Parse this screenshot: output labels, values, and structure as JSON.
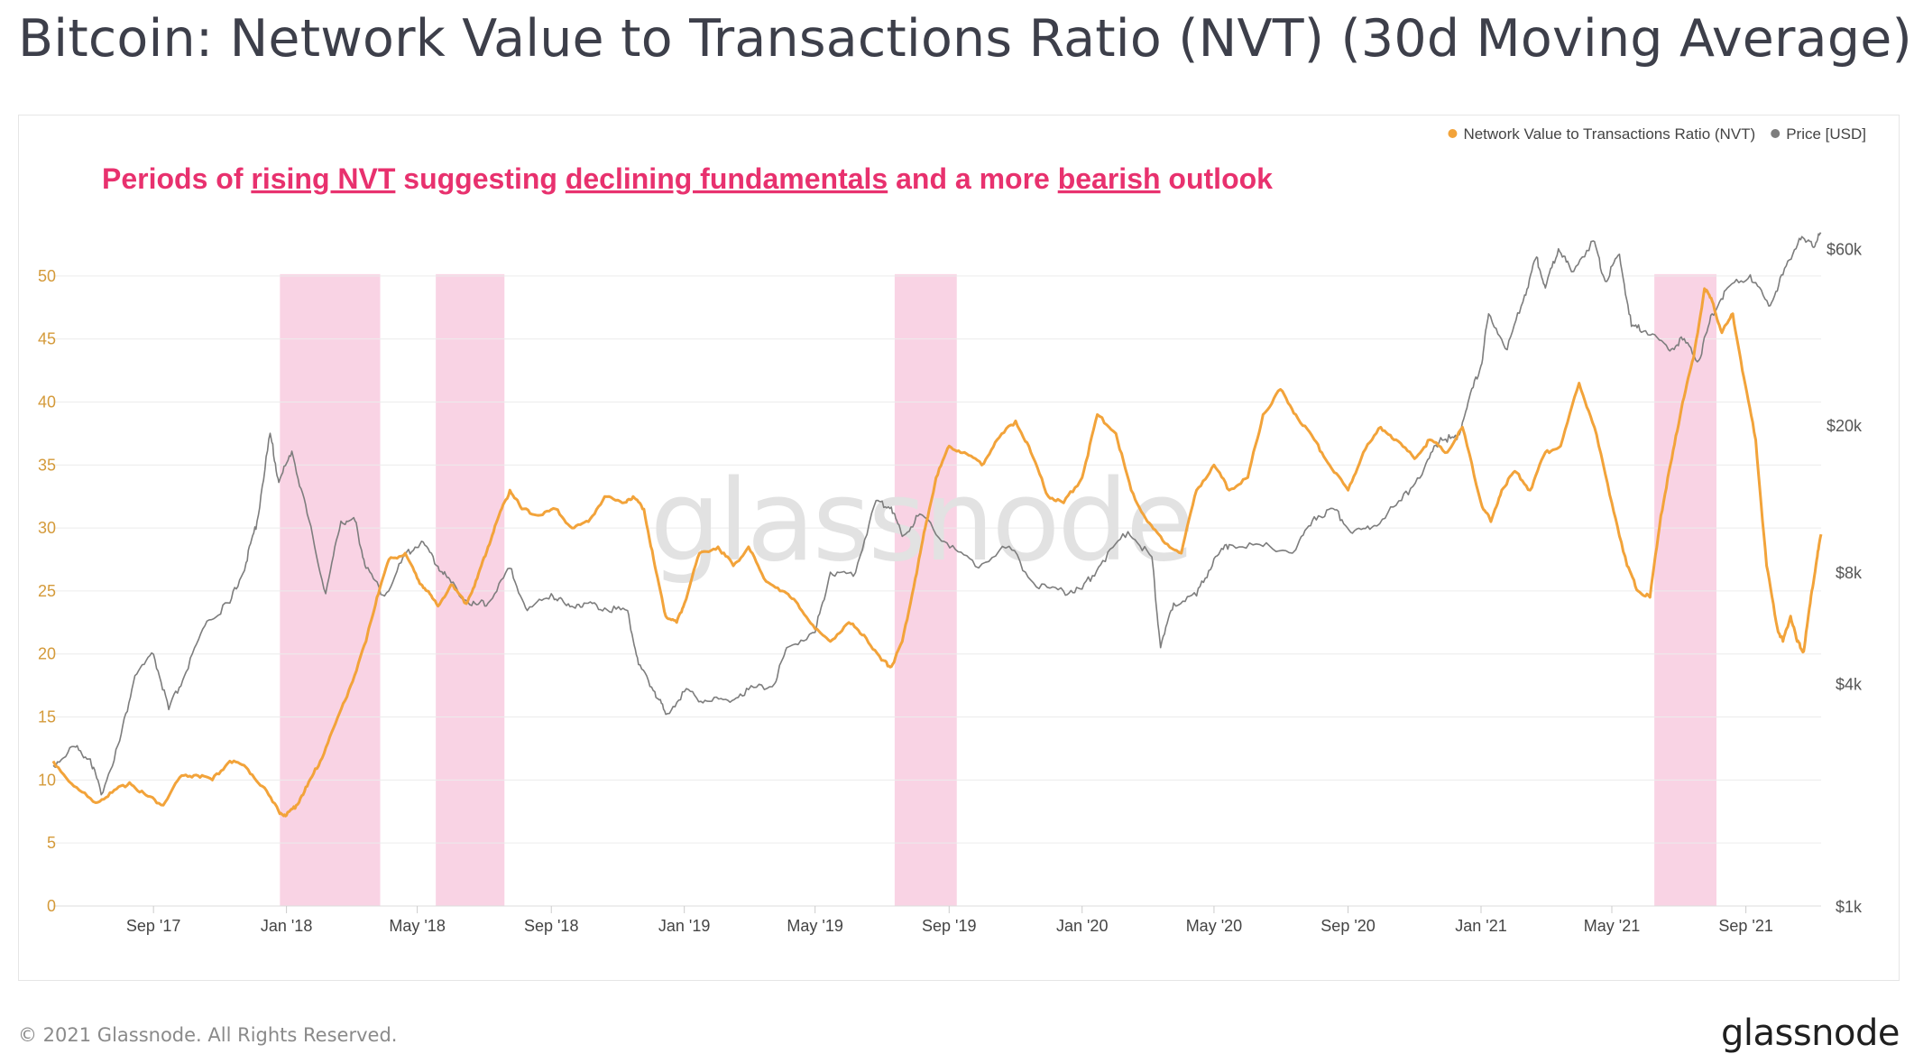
{
  "title": "Bitcoin: Network Value to Transactions Ratio (NVT) (30d Moving Average)",
  "copyright": "© 2021 Glassnode. All Rights Reserved.",
  "brand": "glassnode",
  "watermark": "glassnode",
  "colors": {
    "nvt": "#f2a33a",
    "price": "#7d7d7d",
    "highlight": "#f9d3e4",
    "annotation": "#e8316e",
    "tick_left": "#d49a3a",
    "tick_right": "#555555",
    "tick_x": "#444444",
    "grid": "#ececec",
    "watermark": "#e2e2e2"
  },
  "chart_data": {
    "type": "line",
    "title": "Bitcoin: Network Value to Transactions Ratio (NVT) (30d Moving Average)",
    "x_start": "2017-06-01",
    "x_end": "2021-11-09",
    "x_ticks": [
      {
        "label": "Sep '17",
        "date": "2017-09-01"
      },
      {
        "label": "Jan '18",
        "date": "2018-01-01"
      },
      {
        "label": "May '18",
        "date": "2018-05-01"
      },
      {
        "label": "Sep '18",
        "date": "2018-09-01"
      },
      {
        "label": "Jan '19",
        "date": "2019-01-01"
      },
      {
        "label": "May '19",
        "date": "2019-05-01"
      },
      {
        "label": "Sep '19",
        "date": "2019-09-01"
      },
      {
        "label": "Jan '20",
        "date": "2020-01-01"
      },
      {
        "label": "May '20",
        "date": "2020-05-01"
      },
      {
        "label": "Sep '20",
        "date": "2020-09-01"
      },
      {
        "label": "Jan '21",
        "date": "2021-01-01"
      },
      {
        "label": "May '21",
        "date": "2021-05-01"
      },
      {
        "label": "Sep '21",
        "date": "2021-09-01"
      }
    ],
    "y_left": {
      "label": "",
      "range": [
        0,
        55
      ],
      "ticks": [
        "0",
        "5",
        "10",
        "15",
        "20",
        "25",
        "30",
        "35",
        "40",
        "45",
        "50"
      ]
    },
    "y_right": {
      "label": "",
      "scale": "log",
      "range": [
        1000,
        75000
      ],
      "ticks": [
        {
          "label": "$1k",
          "value": 1000
        },
        {
          "label": "$4k",
          "value": 4000
        },
        {
          "label": "$8k",
          "value": 8000
        },
        {
          "label": "$20k",
          "value": 20000
        },
        {
          "label": "$60k",
          "value": 60000
        }
      ]
    },
    "grid": "horizontal",
    "legend": {
      "placement": "top-right",
      "items": [
        {
          "label": "Network Value to Transactions Ratio (NVT)",
          "color": "#f2a33a"
        },
        {
          "label": "Price [USD]",
          "color": "#7d7d7d"
        }
      ]
    },
    "annotation": {
      "segments": [
        {
          "text": "Periods of ",
          "underline": false
        },
        {
          "text": "rising NVT",
          "underline": true
        },
        {
          "text": " suggesting ",
          "underline": false
        },
        {
          "text": "declining fundamentals",
          "underline": true
        },
        {
          "text": " and a more ",
          "underline": false
        },
        {
          "text": "bearish",
          "underline": true
        },
        {
          "text": " outlook",
          "underline": false
        }
      ]
    },
    "highlights": [
      {
        "start": "2017-12-26",
        "end": "2018-03-28"
      },
      {
        "start": "2018-05-18",
        "end": "2018-07-20"
      },
      {
        "start": "2019-07-13",
        "end": "2019-09-08"
      },
      {
        "start": "2021-06-09",
        "end": "2021-08-05"
      }
    ],
    "series": [
      {
        "name": "Network Value to Transactions Ratio (NVT)",
        "axis": "left",
        "points": [
          [
            "2017-06-01",
            11.5
          ],
          [
            "2017-06-20",
            9.5
          ],
          [
            "2017-07-10",
            8.2
          ],
          [
            "2017-07-25",
            9.0
          ],
          [
            "2017-08-10",
            9.8
          ],
          [
            "2017-08-25",
            8.8
          ],
          [
            "2017-09-10",
            8.0
          ],
          [
            "2017-09-25",
            10.2
          ],
          [
            "2017-10-10",
            10.4
          ],
          [
            "2017-10-25",
            10.0
          ],
          [
            "2017-11-10",
            11.5
          ],
          [
            "2017-11-25",
            11.0
          ],
          [
            "2017-12-10",
            9.5
          ],
          [
            "2017-12-25",
            7.5
          ],
          [
            "2018-01-01",
            7.2
          ],
          [
            "2018-01-10",
            8.0
          ],
          [
            "2018-01-20",
            9.5
          ],
          [
            "2018-02-01",
            11.5
          ],
          [
            "2018-02-15",
            14.5
          ],
          [
            "2018-03-01",
            17.5
          ],
          [
            "2018-03-15",
            21.0
          ],
          [
            "2018-03-25",
            24.5
          ],
          [
            "2018-04-05",
            27.5
          ],
          [
            "2018-04-20",
            28.0
          ],
          [
            "2018-05-01",
            26.0
          ],
          [
            "2018-05-10",
            25.0
          ],
          [
            "2018-05-20",
            23.8
          ],
          [
            "2018-06-01",
            25.5
          ],
          [
            "2018-06-15",
            24.0
          ],
          [
            "2018-06-25",
            26.0
          ],
          [
            "2018-07-05",
            28.5
          ],
          [
            "2018-07-15",
            31.0
          ],
          [
            "2018-07-25",
            33.0
          ],
          [
            "2018-08-05",
            31.5
          ],
          [
            "2018-08-20",
            31.0
          ],
          [
            "2018-09-05",
            31.5
          ],
          [
            "2018-09-20",
            30.0
          ],
          [
            "2018-10-05",
            30.5
          ],
          [
            "2018-10-20",
            32.5
          ],
          [
            "2018-11-05",
            32.0
          ],
          [
            "2018-11-15",
            32.5
          ],
          [
            "2018-11-25",
            31.5
          ],
          [
            "2018-12-05",
            27.0
          ],
          [
            "2018-12-15",
            23.0
          ],
          [
            "2018-12-25",
            22.5
          ],
          [
            "2019-01-01",
            24.0
          ],
          [
            "2019-01-15",
            28.0
          ],
          [
            "2019-02-01",
            28.5
          ],
          [
            "2019-02-15",
            27.0
          ],
          [
            "2019-03-01",
            28.5
          ],
          [
            "2019-03-15",
            26.0
          ],
          [
            "2019-04-01",
            25.0
          ],
          [
            "2019-04-15",
            24.0
          ],
          [
            "2019-05-01",
            22.0
          ],
          [
            "2019-05-15",
            21.0
          ],
          [
            "2019-06-01",
            22.5
          ],
          [
            "2019-06-15",
            21.5
          ],
          [
            "2019-07-01",
            19.5
          ],
          [
            "2019-07-10",
            19.0
          ],
          [
            "2019-07-20",
            21.0
          ],
          [
            "2019-08-01",
            26.0
          ],
          [
            "2019-08-10",
            30.0
          ],
          [
            "2019-08-20",
            34.0
          ],
          [
            "2019-09-01",
            36.5
          ],
          [
            "2019-09-15",
            36.0
          ],
          [
            "2019-10-01",
            35.0
          ],
          [
            "2019-10-15",
            37.0
          ],
          [
            "2019-11-01",
            38.5
          ],
          [
            "2019-11-15",
            36.0
          ],
          [
            "2019-12-01",
            32.5
          ],
          [
            "2019-12-15",
            32.0
          ],
          [
            "2020-01-01",
            34.0
          ],
          [
            "2020-01-15",
            39.0
          ],
          [
            "2020-02-01",
            37.5
          ],
          [
            "2020-02-15",
            33.0
          ],
          [
            "2020-03-01",
            30.5
          ],
          [
            "2020-03-15",
            29.0
          ],
          [
            "2020-04-01",
            28.0
          ],
          [
            "2020-04-15",
            33.0
          ],
          [
            "2020-05-01",
            35.0
          ],
          [
            "2020-05-15",
            33.0
          ],
          [
            "2020-06-01",
            34.0
          ],
          [
            "2020-06-15",
            39.0
          ],
          [
            "2020-07-01",
            41.0
          ],
          [
            "2020-07-15",
            39.0
          ],
          [
            "2020-08-01",
            37.0
          ],
          [
            "2020-08-15",
            35.0
          ],
          [
            "2020-09-01",
            33.0
          ],
          [
            "2020-09-15",
            36.0
          ],
          [
            "2020-10-01",
            38.0
          ],
          [
            "2020-10-15",
            37.0
          ],
          [
            "2020-11-01",
            35.5
          ],
          [
            "2020-11-15",
            37.0
          ],
          [
            "2020-12-01",
            36.0
          ],
          [
            "2020-12-15",
            38.0
          ],
          [
            "2021-01-01",
            32.0
          ],
          [
            "2021-01-10",
            30.5
          ],
          [
            "2021-01-20",
            33.0
          ],
          [
            "2021-02-01",
            34.5
          ],
          [
            "2021-02-15",
            33.0
          ],
          [
            "2021-03-01",
            36.0
          ],
          [
            "2021-03-15",
            36.5
          ],
          [
            "2021-04-01",
            41.5
          ],
          [
            "2021-04-15",
            38.0
          ],
          [
            "2021-05-01",
            32.0
          ],
          [
            "2021-05-15",
            27.0
          ],
          [
            "2021-05-25",
            25.0
          ],
          [
            "2021-06-05",
            24.5
          ],
          [
            "2021-06-15",
            31.0
          ],
          [
            "2021-06-25",
            35.5
          ],
          [
            "2021-07-05",
            40.0
          ],
          [
            "2021-07-15",
            43.5
          ],
          [
            "2021-07-25",
            49.0
          ],
          [
            "2021-08-01",
            48.0
          ],
          [
            "2021-08-10",
            45.5
          ],
          [
            "2021-08-20",
            47.0
          ],
          [
            "2021-08-30",
            42.0
          ],
          [
            "2021-09-10",
            37.0
          ],
          [
            "2021-09-20",
            27.0
          ],
          [
            "2021-09-30",
            22.0
          ],
          [
            "2021-10-05",
            21.0
          ],
          [
            "2021-10-12",
            23.0
          ],
          [
            "2021-10-18",
            21.0
          ],
          [
            "2021-10-24",
            20.2
          ],
          [
            "2021-10-30",
            24.0
          ],
          [
            "2021-11-05",
            27.5
          ],
          [
            "2021-11-09",
            29.5
          ]
        ]
      },
      {
        "name": "Price [USD]",
        "axis": "right",
        "points": [
          [
            "2017-06-01",
            2400
          ],
          [
            "2017-06-20",
            2700
          ],
          [
            "2017-07-05",
            2500
          ],
          [
            "2017-07-15",
            2000
          ],
          [
            "2017-08-01",
            2800
          ],
          [
            "2017-08-15",
            4200
          ],
          [
            "2017-09-01",
            4800
          ],
          [
            "2017-09-15",
            3400
          ],
          [
            "2017-10-01",
            4300
          ],
          [
            "2017-10-20",
            5900
          ],
          [
            "2017-11-10",
            6600
          ],
          [
            "2017-11-25",
            8500
          ],
          [
            "2017-12-05",
            11000
          ],
          [
            "2017-12-17",
            19000
          ],
          [
            "2017-12-25",
            14000
          ],
          [
            "2018-01-06",
            17000
          ],
          [
            "2018-01-20",
            11500
          ],
          [
            "2018-02-06",
            7000
          ],
          [
            "2018-02-20",
            11000
          ],
          [
            "2018-03-05",
            11000
          ],
          [
            "2018-03-15",
            8200
          ],
          [
            "2018-04-01",
            6900
          ],
          [
            "2018-04-20",
            8900
          ],
          [
            "2018-05-05",
            9700
          ],
          [
            "2018-05-20",
            8300
          ],
          [
            "2018-06-01",
            7500
          ],
          [
            "2018-06-20",
            6500
          ],
          [
            "2018-07-05",
            6600
          ],
          [
            "2018-07-25",
            8200
          ],
          [
            "2018-08-10",
            6300
          ],
          [
            "2018-09-01",
            7000
          ],
          [
            "2018-09-15",
            6500
          ],
          [
            "2018-10-01",
            6600
          ],
          [
            "2018-10-20",
            6400
          ],
          [
            "2018-11-10",
            6300
          ],
          [
            "2018-11-20",
            4500
          ],
          [
            "2018-12-05",
            3800
          ],
          [
            "2018-12-15",
            3300
          ],
          [
            "2019-01-01",
            3800
          ],
          [
            "2019-01-20",
            3600
          ],
          [
            "2019-02-10",
            3600
          ],
          [
            "2019-03-01",
            3850
          ],
          [
            "2019-03-25",
            4000
          ],
          [
            "2019-04-05",
            5000
          ],
          [
            "2019-05-01",
            5500
          ],
          [
            "2019-05-15",
            8000
          ],
          [
            "2019-06-05",
            7800
          ],
          [
            "2019-06-26",
            12500
          ],
          [
            "2019-07-10",
            12000
          ],
          [
            "2019-07-20",
            10000
          ],
          [
            "2019-08-05",
            11500
          ],
          [
            "2019-08-30",
            9600
          ],
          [
            "2019-09-25",
            8300
          ],
          [
            "2019-10-26",
            9400
          ],
          [
            "2019-11-20",
            7300
          ],
          [
            "2019-12-15",
            7100
          ],
          [
            "2020-01-01",
            7200
          ],
          [
            "2020-01-20",
            8600
          ],
          [
            "2020-02-12",
            10300
          ],
          [
            "2020-03-05",
            8800
          ],
          [
            "2020-03-13",
            5000
          ],
          [
            "2020-03-25",
            6600
          ],
          [
            "2020-04-15",
            6900
          ],
          [
            "2020-05-01",
            8700
          ],
          [
            "2020-05-15",
            9500
          ],
          [
            "2020-06-15",
            9400
          ],
          [
            "2020-07-15",
            9200
          ],
          [
            "2020-08-01",
            11300
          ],
          [
            "2020-08-20",
            11800
          ],
          [
            "2020-09-05",
            10200
          ],
          [
            "2020-09-25",
            10700
          ],
          [
            "2020-10-20",
            12500
          ],
          [
            "2020-11-10",
            15300
          ],
          [
            "2020-11-25",
            18500
          ],
          [
            "2020-12-10",
            18300
          ],
          [
            "2020-12-20",
            23000
          ],
          [
            "2021-01-01",
            29000
          ],
          [
            "2021-01-08",
            40000
          ],
          [
            "2021-01-25",
            32000
          ],
          [
            "2021-02-10",
            45000
          ],
          [
            "2021-02-21",
            57000
          ],
          [
            "2021-03-01",
            47000
          ],
          [
            "2021-03-13",
            60000
          ],
          [
            "2021-03-25",
            52000
          ],
          [
            "2021-04-14",
            63000
          ],
          [
            "2021-04-25",
            49000
          ],
          [
            "2021-05-08",
            58000
          ],
          [
            "2021-05-19",
            37000
          ],
          [
            "2021-06-01",
            36000
          ],
          [
            "2021-06-22",
            32000
          ],
          [
            "2021-07-05",
            34000
          ],
          [
            "2021-07-20",
            30000
          ],
          [
            "2021-08-01",
            40000
          ],
          [
            "2021-08-15",
            47000
          ],
          [
            "2021-09-05",
            51000
          ],
          [
            "2021-09-22",
            42000
          ],
          [
            "2021-10-05",
            51000
          ],
          [
            "2021-10-20",
            64000
          ],
          [
            "2021-11-01",
            61000
          ],
          [
            "2021-11-09",
            66000
          ]
        ]
      }
    ]
  }
}
